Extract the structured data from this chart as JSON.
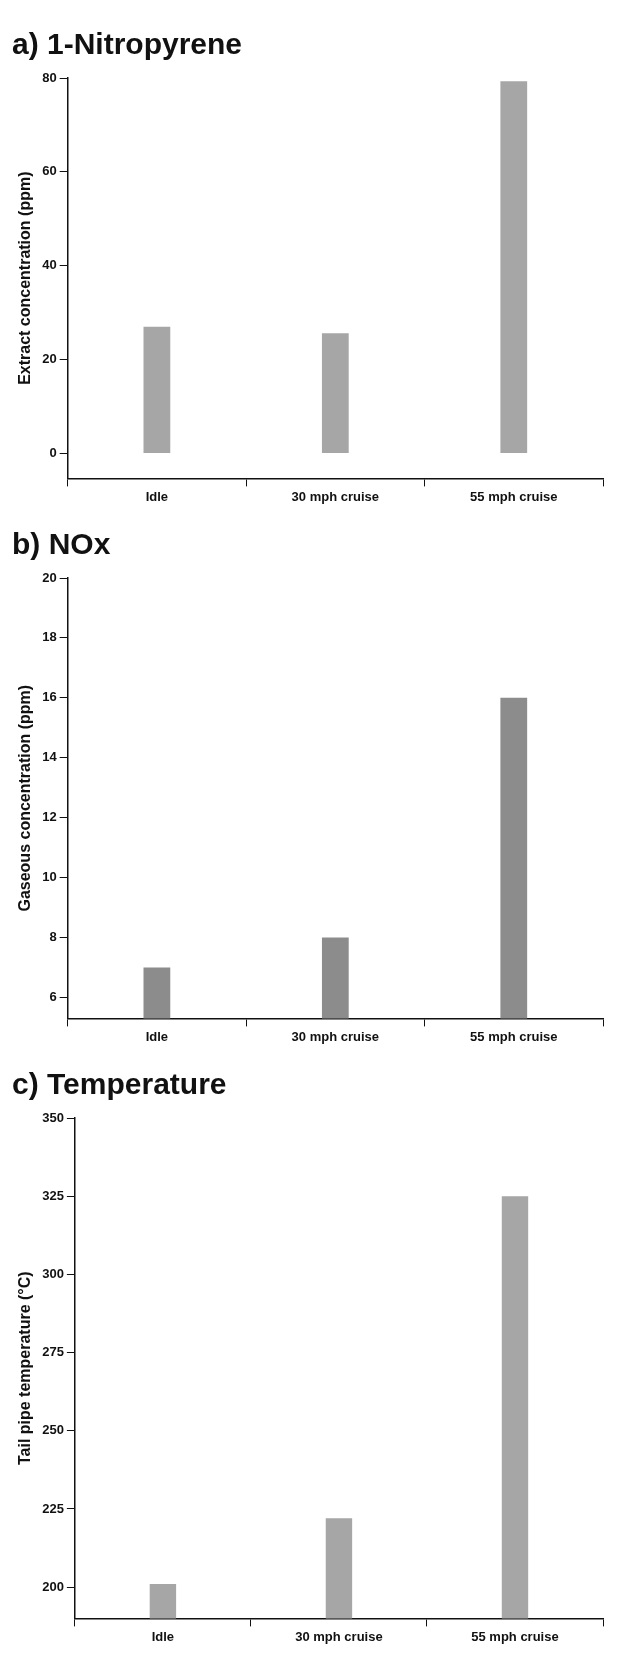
{
  "chart_data": [
    {
      "type": "bar",
      "title": "a) 1-Nitropyrene",
      "ylabel": "Extract concentration (ppm)",
      "categories": [
        "Idle",
        "30 mph cruise",
        "55 mph cruise"
      ],
      "values": [
        27,
        25.6,
        79.3
      ],
      "color": "#a6a6a6",
      "ylim": [
        -5.3,
        80
      ],
      "yticks": [
        0,
        20,
        40,
        60,
        80
      ],
      "grid": false,
      "legend": false
    },
    {
      "type": "bar",
      "title": "b) NOx",
      "ylabel": "Gaseous concentration (ppm)",
      "categories": [
        "Idle",
        "30 mph cruise",
        "55 mph cruise"
      ],
      "values": [
        7,
        8,
        16
      ],
      "color": "#8c8c8c",
      "ylim": [
        5.3,
        20
      ],
      "yticks": [
        6,
        8,
        10,
        12,
        14,
        16,
        18,
        20
      ],
      "grid": false,
      "legend": false
    },
    {
      "type": "bar",
      "title": "c) Temperature",
      "ylabel": "Tail pipe temperature (°C)",
      "categories": [
        "Idle",
        "30 mph cruise",
        "55 mph cruise"
      ],
      "values": [
        201,
        222,
        325
      ],
      "color": "#a6a6a6",
      "ylim": [
        190,
        350
      ],
      "yticks": [
        200,
        225,
        250,
        275,
        300,
        325,
        350
      ],
      "grid": false,
      "legend": false
    }
  ]
}
